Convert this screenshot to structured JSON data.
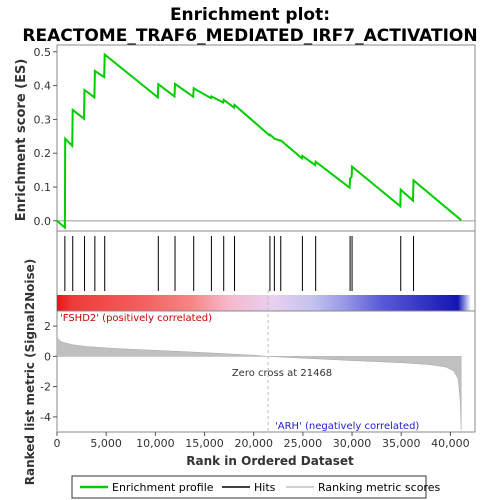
{
  "chart_data": {
    "type": "line",
    "title_line1": "Enrichment plot:",
    "title_line2": "REACTOME_TRAF6_MEDIATED_IRF7_ACTIVATION",
    "top_panel": {
      "ylabel": "Enrichment score (ES)",
      "ylim": [
        -0.03,
        0.52
      ],
      "yticks": [
        0.0,
        0.1,
        0.2,
        0.3,
        0.4,
        0.5
      ],
      "ytick_labels": [
        "0.0",
        "0.1",
        "0.2",
        "0.3",
        "0.4",
        "0.5"
      ],
      "series": [
        {
          "name": "Enrichment profile",
          "color": "#00cc00",
          "x": [
            0,
            800,
            830,
            1550,
            1600,
            2750,
            2800,
            3800,
            3850,
            4800,
            4850,
            10250,
            10300,
            11950,
            12000,
            13850,
            13900,
            15650,
            15700,
            16900,
            16950,
            18000,
            18050,
            21600,
            21650,
            22050,
            22100,
            22700,
            22750,
            24900,
            24950,
            26250,
            26300,
            29750,
            29800,
            29950,
            30000,
            34900,
            34950,
            36200,
            36250,
            41100
          ],
          "y": [
            0.0,
            -0.02,
            0.243,
            0.222,
            0.328,
            0.302,
            0.387,
            0.365,
            0.443,
            0.425,
            0.492,
            0.365,
            0.404,
            0.368,
            0.405,
            0.367,
            0.392,
            0.363,
            0.368,
            0.35,
            0.358,
            0.335,
            0.343,
            0.253,
            0.255,
            0.245,
            0.243,
            0.237,
            0.238,
            0.185,
            0.192,
            0.165,
            0.175,
            0.098,
            0.125,
            0.13,
            0.16,
            0.043,
            0.092,
            0.06,
            0.12,
            0.002
          ]
        }
      ]
    },
    "hits": [
      800,
      1600,
      2800,
      3850,
      4850,
      10300,
      12000,
      13900,
      15700,
      16950,
      18050,
      21650,
      22100,
      22750,
      24950,
      26300,
      29800,
      30000,
      34950,
      36250
    ],
    "heat_bar": {
      "stops": [
        {
          "x": 0,
          "color": "#e31818"
        },
        {
          "x": 1500,
          "color": "#ef3a3a"
        },
        {
          "x": 8700,
          "color": "#f46060"
        },
        {
          "x": 13400,
          "color": "#f68686"
        },
        {
          "x": 17000,
          "color": "#f6b8cc"
        },
        {
          "x": 21500,
          "color": "#e8d0f0"
        },
        {
          "x": 25500,
          "color": "#c2c2ee"
        },
        {
          "x": 28800,
          "color": "#9494e6"
        },
        {
          "x": 32200,
          "color": "#5a5ad8"
        },
        {
          "x": 39800,
          "color": "#1414b4"
        },
        {
          "x": 41100,
          "color": "#ffffff"
        }
      ]
    },
    "bottom_panel": {
      "ylabel": "Ranked list metric (Signal2Noise)",
      "ylim": [
        -5.0,
        3.0
      ],
      "yticks": [
        -4,
        -2,
        0,
        2
      ],
      "ytick_labels": [
        "-4",
        "-2",
        "0",
        "2"
      ],
      "ranked_metric": {
        "x": [
          0,
          100,
          500,
          1500,
          3000,
          6000,
          10000,
          15000,
          20000,
          21468,
          25000,
          30000,
          35000,
          38000,
          39500,
          40300,
          40800,
          41000,
          41100
        ],
        "y": [
          1.4,
          1.15,
          0.95,
          0.78,
          0.65,
          0.52,
          0.4,
          0.25,
          0.08,
          0.0,
          -0.12,
          -0.28,
          -0.42,
          -0.55,
          -0.7,
          -0.95,
          -1.5,
          -3.0,
          -4.9
        ]
      },
      "zero_cross_label": "Zero cross at 21468",
      "zero_cross": 21468,
      "pos_label": "'FSHD2' (positively correlated)",
      "neg_label": "'ARH' (negatively correlated)"
    },
    "xlabel": "Rank in Ordered Dataset",
    "xlim": [
      0,
      42500
    ],
    "xticks": [
      0,
      5000,
      10000,
      15000,
      20000,
      25000,
      30000,
      35000,
      40000
    ],
    "xtick_labels": [
      "0",
      "5,000",
      "10,000",
      "15,000",
      "20,000",
      "25,000",
      "30,000",
      "35,000",
      "40,000"
    ],
    "legend": {
      "position": "bottom",
      "entries": [
        {
          "label": "Enrichment profile",
          "color": "#00cc00"
        },
        {
          "label": "Hits",
          "color": "#000000"
        },
        {
          "label": "Ranking metric scores",
          "color": "#c0c0c0"
        }
      ]
    }
  }
}
